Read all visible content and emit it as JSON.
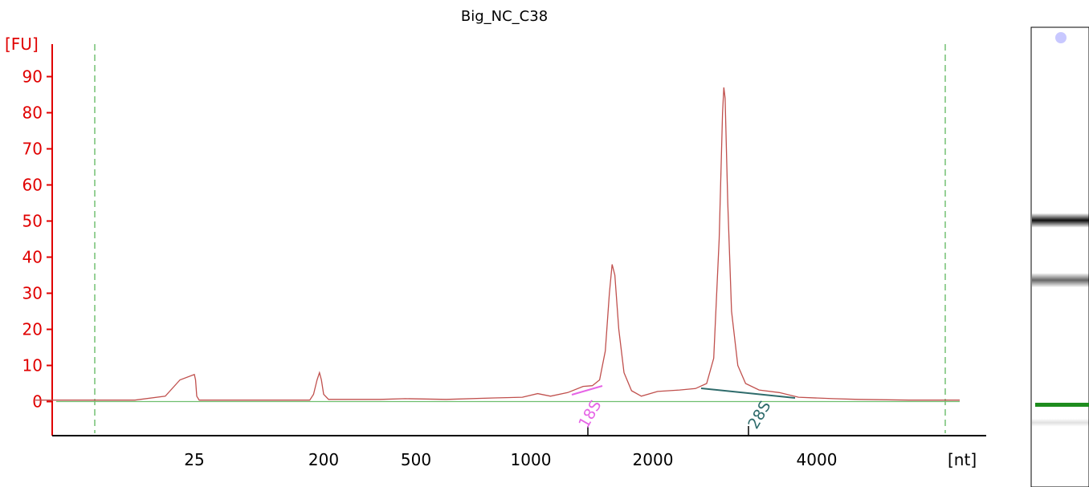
{
  "chart_data": {
    "type": "line",
    "title": "Big_NC_C38",
    "ylabel": "[FU]",
    "xlabel": "[nt]",
    "ylim": [
      -9,
      96
    ],
    "yticks": [
      0,
      10,
      20,
      30,
      40,
      50,
      60,
      70,
      80,
      90
    ],
    "xticks": [
      "25",
      "200",
      "500",
      "1000",
      "2000",
      "4000"
    ],
    "grid": false,
    "series": [
      {
        "color": "#c0504d",
        "points": [
          [
            20,
            0.4
          ],
          [
            23,
            0.4
          ],
          [
            24,
            1.5
          ],
          [
            24.5,
            6
          ],
          [
            25,
            7.5
          ],
          [
            25.5,
            6
          ],
          [
            26,
            1.5
          ],
          [
            27,
            0.4
          ],
          [
            120,
            0.4
          ],
          [
            160,
            0.4
          ],
          [
            170,
            2
          ],
          [
            180,
            6
          ],
          [
            187,
            8
          ],
          [
            193,
            6
          ],
          [
            200,
            2
          ],
          [
            210,
            0.6
          ],
          [
            350,
            0.6
          ],
          [
            450,
            0.8
          ],
          [
            600,
            0.6
          ],
          [
            800,
            1.0
          ],
          [
            950,
            1.2
          ],
          [
            1050,
            2.2
          ],
          [
            1150,
            1.5
          ],
          [
            1300,
            2.5
          ],
          [
            1450,
            4.2
          ],
          [
            1530,
            4.4
          ],
          [
            1580,
            6
          ],
          [
            1620,
            14
          ],
          [
            1650,
            30
          ],
          [
            1670,
            38
          ],
          [
            1690,
            35
          ],
          [
            1720,
            20
          ],
          [
            1760,
            8
          ],
          [
            1820,
            3
          ],
          [
            1900,
            1.5
          ],
          [
            2050,
            2.8
          ],
          [
            2300,
            3.2
          ],
          [
            2500,
            3.6
          ],
          [
            2650,
            5
          ],
          [
            2750,
            12
          ],
          [
            2830,
            45
          ],
          [
            2880,
            80
          ],
          [
            2900,
            87
          ],
          [
            2920,
            84
          ],
          [
            2960,
            55
          ],
          [
            3020,
            25
          ],
          [
            3120,
            10
          ],
          [
            3250,
            5
          ],
          [
            3400,
            3.2
          ],
          [
            3600,
            2.5
          ],
          [
            3800,
            1.2
          ],
          [
            4300,
            0.8
          ],
          [
            4800,
            0.6
          ],
          [
            6000,
            0.4
          ],
          [
            7500,
            0.4
          ]
        ]
      }
    ],
    "baseline": {
      "value": 0,
      "color": "#6fbf6f"
    },
    "annotations": [
      {
        "label": "18S",
        "color": "#e664e6",
        "x": 1500
      },
      {
        "label": "28S",
        "color": "#2e6b6b",
        "x": 3300
      }
    ],
    "markers": {
      "color": "#2ca02c"
    }
  },
  "gel": {
    "bands": [
      {
        "position": 0.42,
        "intensity": 0.95
      },
      {
        "position": 0.55,
        "intensity": 0.6
      },
      {
        "position": 0.86,
        "intensity": 0.12
      }
    ],
    "marker_color": "#1e8c1e",
    "spot_color": "#c8c8ff"
  }
}
